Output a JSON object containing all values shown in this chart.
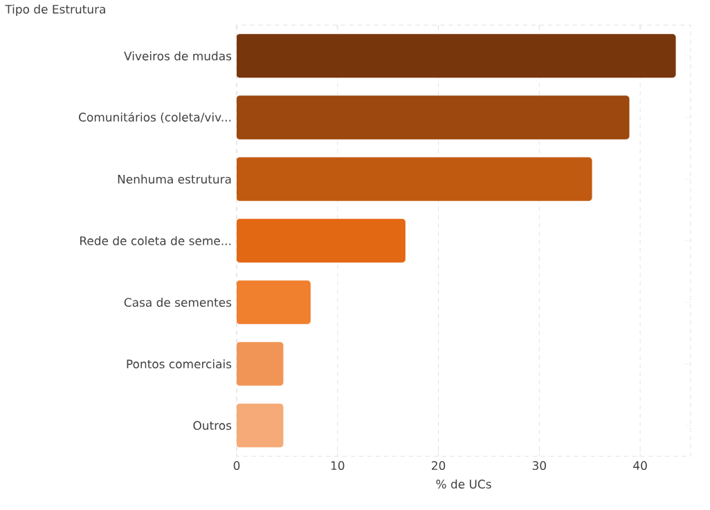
{
  "chart_data": {
    "type": "bar",
    "orientation": "horizontal",
    "ylabel": "Tipo de Estrutura",
    "xlabel": "% de UCs",
    "categories": [
      "Viveiros de mudas",
      "Comunitários (coleta/viv...",
      "Nenhuma estrutura",
      "Rede de coleta de seme...",
      "Casa de sementes",
      "Pontos comerciais",
      "Outros"
    ],
    "values": [
      43.5,
      38.9,
      35.2,
      16.7,
      7.3,
      4.6,
      4.6
    ],
    "colors": [
      "#78360c",
      "#9c480e",
      "#c05a10",
      "#e36813",
      "#f07f2e",
      "#f19556",
      "#f5aa77"
    ],
    "xlim": [
      0,
      45
    ],
    "xticks": [
      0,
      10,
      20,
      30,
      40
    ],
    "grid": "x"
  }
}
